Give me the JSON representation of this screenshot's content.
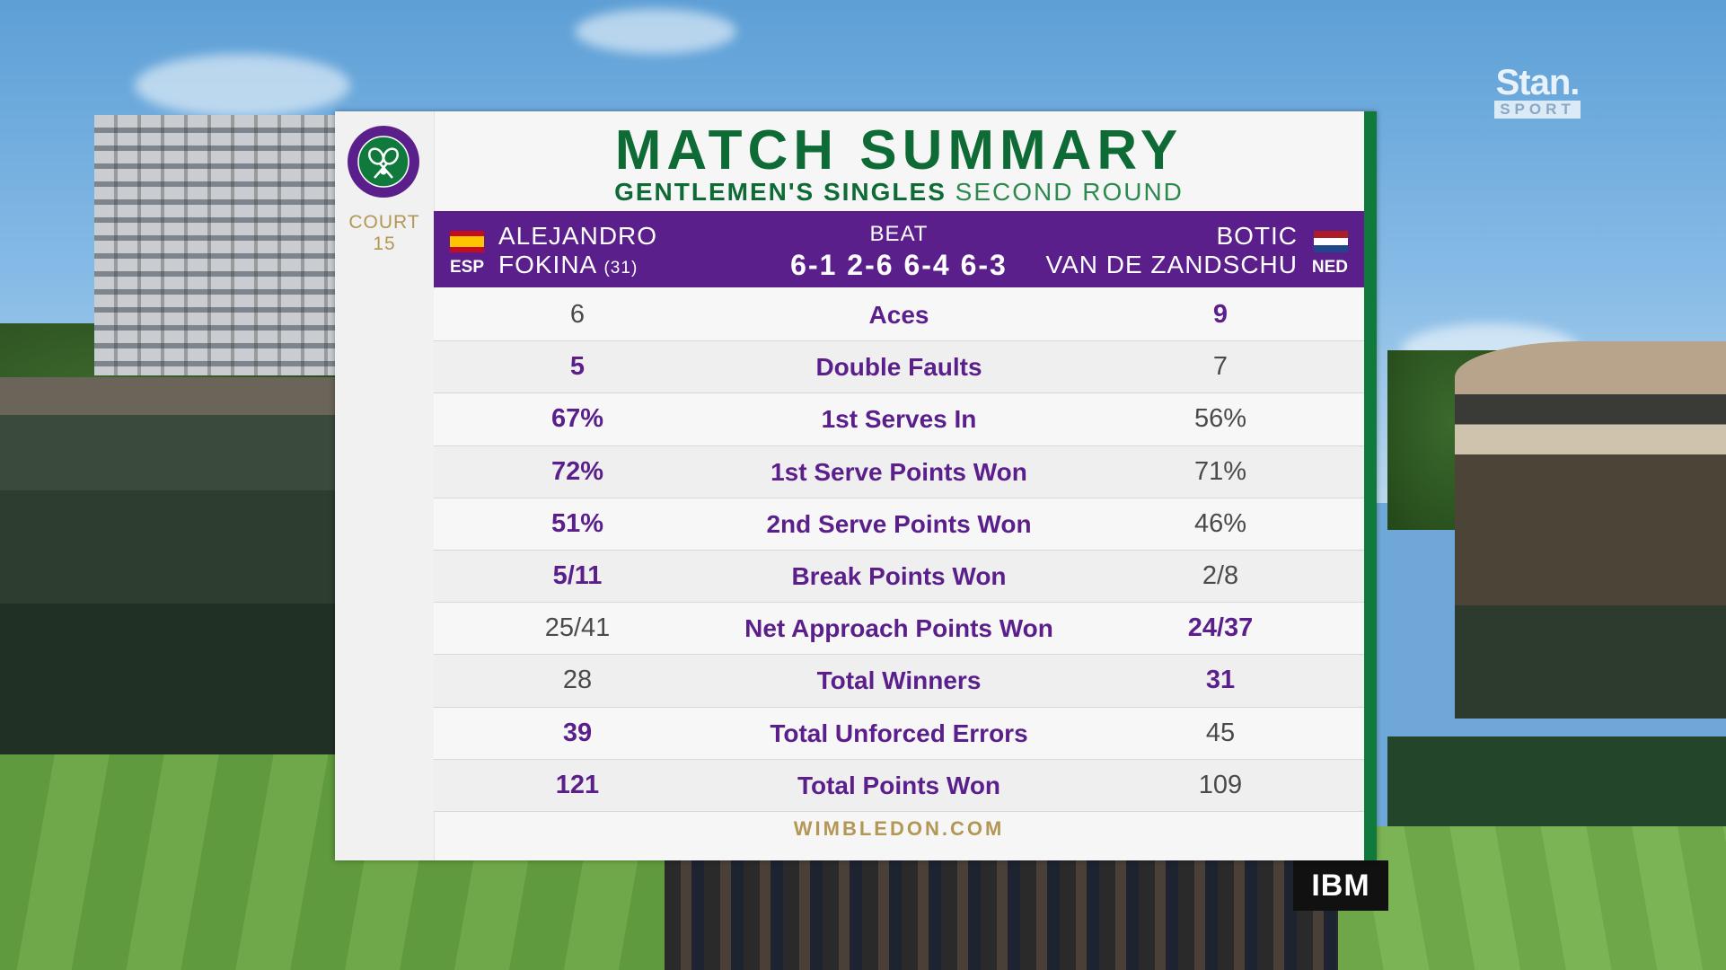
{
  "broadcaster": {
    "name": "Stan.",
    "sub": "SPORT"
  },
  "sponsor": "IBM",
  "court": {
    "label": "COURT",
    "number": "15"
  },
  "title": "MATCH SUMMARY",
  "subtitle": {
    "event": "GENTLEMEN'S SINGLES",
    "round": "SECOND ROUND"
  },
  "player1": {
    "first": "ALEJANDRO",
    "last": "FOKINA",
    "seed": "(31)",
    "country": "ESP"
  },
  "player2": {
    "first": "BOTIC",
    "last": "VAN DE ZANDSCHU",
    "country": "NED"
  },
  "result": {
    "verb": "BEAT",
    "score": "6-1 2-6 6-4 6-3"
  },
  "stats": [
    {
      "label": "Aces",
      "p1": "6",
      "p2": "9",
      "winner": "p2"
    },
    {
      "label": "Double Faults",
      "p1": "5",
      "p2": "7",
      "winner": "p1"
    },
    {
      "label": "1st Serves In",
      "p1": "67%",
      "p2": "56%",
      "winner": "p1"
    },
    {
      "label": "1st Serve Points Won",
      "p1": "72%",
      "p2": "71%",
      "winner": "p1"
    },
    {
      "label": "2nd Serve Points Won",
      "p1": "51%",
      "p2": "46%",
      "winner": "p1"
    },
    {
      "label": "Break Points Won",
      "p1": "5/11",
      "p2": "2/8",
      "winner": "p1"
    },
    {
      "label": "Net Approach Points Won",
      "p1": "25/41",
      "p2": "24/37",
      "winner": "p2"
    },
    {
      "label": "Total Winners",
      "p1": "28",
      "p2": "31",
      "winner": "p2"
    },
    {
      "label": "Total Unforced Errors",
      "p1": "39",
      "p2": "45",
      "winner": "p1"
    },
    {
      "label": "Total Points Won",
      "p1": "121",
      "p2": "109",
      "winner": "p1"
    }
  ],
  "footer": "WIMBLEDON.COM",
  "colors": {
    "purple": "#5b1f8c",
    "green": "#0e6b35",
    "gold": "#b39754"
  }
}
